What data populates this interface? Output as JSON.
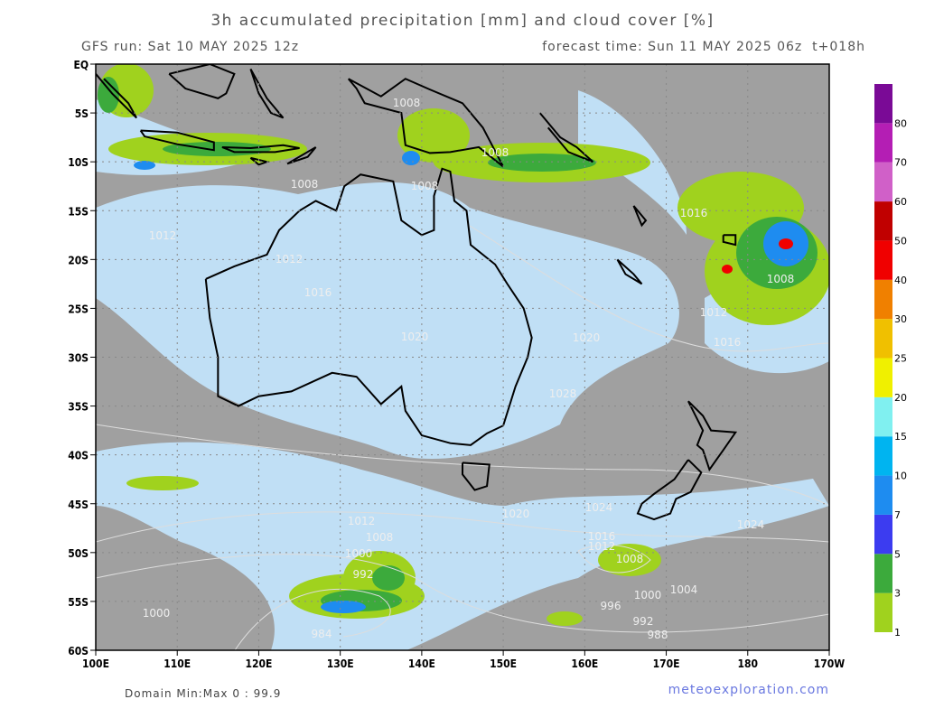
{
  "header": {
    "title": "3h accumulated precipitation [mm] and cloud cover [%]",
    "run": "GFS run: Sat 10 MAY 2025 12z",
    "forecast": "forecast time: Sun 11 MAY 2025 06z  t+018h"
  },
  "axes": {
    "latitude_labels": [
      "EQ",
      "5S",
      "10S",
      "15S",
      "20S",
      "25S",
      "30S",
      "35S",
      "40S",
      "45S",
      "50S",
      "55S",
      "60S"
    ],
    "longitude_labels": [
      "100E",
      "110E",
      "120E",
      "130E",
      "140E",
      "150E",
      "160E",
      "170E",
      "180",
      "170W"
    ]
  },
  "colorbar": {
    "levels": [
      1,
      3,
      5,
      7,
      10,
      15,
      20,
      25,
      30,
      40,
      50,
      60,
      70,
      80
    ],
    "colors": [
      "#a0d21e",
      "#3caa3c",
      "#3c3cf0",
      "#1e8cf0",
      "#00b4f0",
      "#80f0f0",
      "#f0f000",
      "#f0c000",
      "#f08000",
      "#f00000",
      "#c00000",
      "#d060c8",
      "#b41eb4",
      "#7a0a96"
    ]
  },
  "isobars": [
    "1008",
    "1008",
    "1008",
    "1008",
    "1012",
    "1012",
    "1016",
    "1020",
    "1028",
    "1020",
    "1024",
    "1016",
    "1012",
    "1008",
    "1004",
    "1000",
    "996",
    "992",
    "988",
    "1024",
    "1012",
    "1008",
    "1000",
    "992",
    "984",
    "1000",
    "1012",
    "1016",
    "1008",
    "1016",
    "1020"
  ],
  "footer": {
    "domain": "Domain Min:Max 0 : 99.9",
    "website": "meteoexploration.com"
  }
}
